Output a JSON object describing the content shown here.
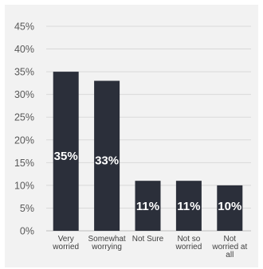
{
  "chart_data": {
    "type": "bar",
    "categories": [
      [
        "Very",
        "worried"
      ],
      [
        "Somewhat",
        "worrying"
      ],
      [
        "Not Sure"
      ],
      [
        "Not so",
        "worried"
      ],
      [
        "Not",
        "worried at",
        "all"
      ]
    ],
    "values": [
      35,
      33,
      11,
      11,
      10
    ],
    "data_labels": [
      "35%",
      "33%",
      "11%",
      "11%",
      "10%"
    ],
    "y_ticks": [
      "0%",
      "5%",
      "10%",
      "15%",
      "20%",
      "25%",
      "30%",
      "35%",
      "40%",
      "45%"
    ],
    "ylim": [
      0,
      45
    ],
    "grid": true,
    "bar_color": "#2b2f3a",
    "background": "#f2f2f2"
  }
}
